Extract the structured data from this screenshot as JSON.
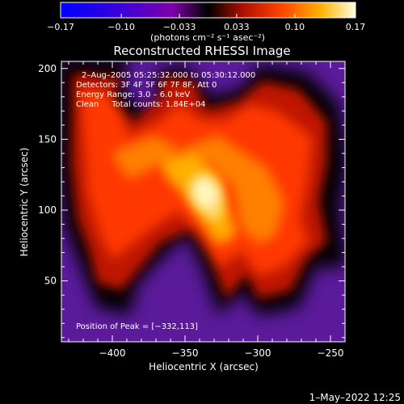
{
  "chart_data": {
    "type": "heatmap",
    "title": "Reconstructed RHESSI Image",
    "xlabel": "Heliocentric X (arcsec)",
    "ylabel": "Heliocentric Y (arcsec)",
    "xlim": [
      -435,
      -240
    ],
    "ylim": [
      7,
      205
    ],
    "xticks": [
      -400,
      -350,
      -300,
      -250
    ],
    "xtick_labels": [
      "−400",
      "−350",
      "−300",
      "−250"
    ],
    "yticks": [
      50,
      100,
      150,
      200
    ],
    "ytick_labels": [
      "50",
      "100",
      "150",
      "200"
    ],
    "colorbar": {
      "range": [
        -0.17,
        0.17
      ],
      "ticks": [
        -0.17,
        -0.1,
        -0.033,
        0.033,
        0.1,
        0.17
      ],
      "tick_labels": [
        "−0.17",
        "−0.10",
        "−0.033",
        "0.033",
        "0.10",
        "0.17"
      ],
      "unit": "(photons cm⁻² s⁻¹ asec⁻²)"
    },
    "annotations": [
      "2–Aug–2005 05:25:32.000 to 05:30:12.000",
      "Detectors: 3F 4F 5F 6F 7F 8F, Att 0",
      "Energy Range: 3.0 – 6.0 keV",
      "Clean     Total counts: 1.84E+04"
    ],
    "peak": {
      "x": -332,
      "y": 113,
      "label": "Position of Peak = [−332,113]"
    },
    "grid": false
  },
  "footer": {
    "timestamp": "1–May–2022 12:25"
  }
}
